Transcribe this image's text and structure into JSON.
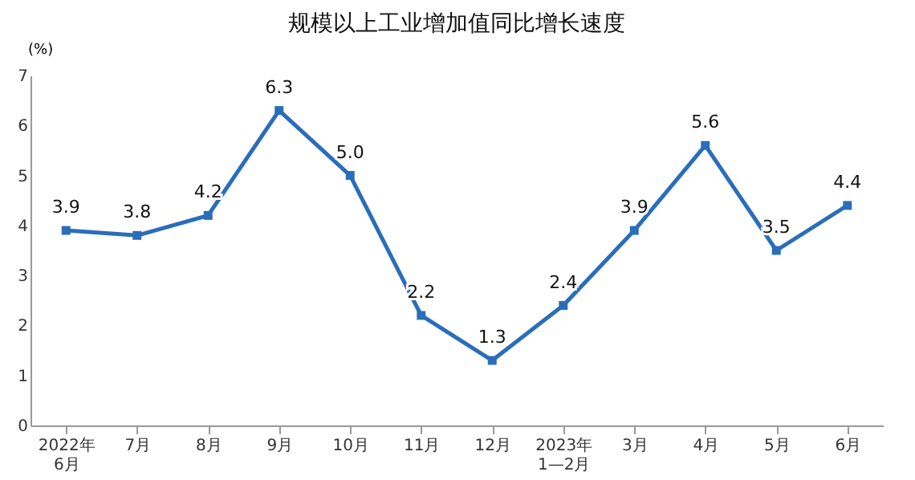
{
  "chart_data": {
    "type": "line",
    "title": "规模以上工业增加值同比增长速度",
    "ylabel": "(%)",
    "categories": [
      "2022年\n6月",
      "7月",
      "8月",
      "9月",
      "10月",
      "11月",
      "12月",
      "2023年\n1—2月",
      "3月",
      "4月",
      "5月",
      "6月"
    ],
    "series": [
      {
        "color": "#2a6ebb",
        "values": [
          3.9,
          3.8,
          4.2,
          6.3,
          5.0,
          2.2,
          1.3,
          2.4,
          3.9,
          5.6,
          3.5,
          4.4
        ]
      }
    ],
    "ylim": [
      0,
      7
    ],
    "yticks": [
      0,
      1,
      2,
      3,
      4,
      5,
      6,
      7
    ],
    "grid": false,
    "marker": "square",
    "line_style": "solid",
    "value_labels": [
      "3.9",
      "3.8",
      "4.2",
      "6.3",
      "5.0",
      "2.2",
      "1.3",
      "2.4",
      "3.9",
      "5.6",
      "3.5",
      "4.4"
    ]
  }
}
